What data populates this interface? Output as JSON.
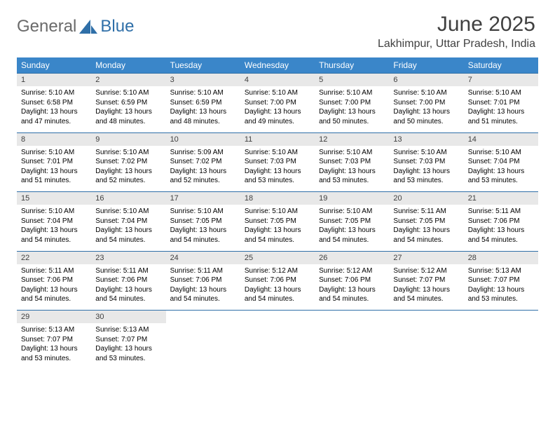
{
  "brand": {
    "g": "General",
    "b": "Blue"
  },
  "title": "June 2025",
  "location": "Lakhimpur, Uttar Pradesh, India",
  "colors": {
    "header_bg": "#3a86c9",
    "header_text": "#ffffff",
    "daynum_bg": "#e8e8e8",
    "border": "#2f6fa8",
    "title_color": "#404040"
  },
  "day_headers": [
    "Sunday",
    "Monday",
    "Tuesday",
    "Wednesday",
    "Thursday",
    "Friday",
    "Saturday"
  ],
  "weeks": [
    [
      {
        "n": "1",
        "sr": "Sunrise: 5:10 AM",
        "ss": "Sunset: 6:58 PM",
        "d1": "Daylight: 13 hours",
        "d2": "and 47 minutes."
      },
      {
        "n": "2",
        "sr": "Sunrise: 5:10 AM",
        "ss": "Sunset: 6:59 PM",
        "d1": "Daylight: 13 hours",
        "d2": "and 48 minutes."
      },
      {
        "n": "3",
        "sr": "Sunrise: 5:10 AM",
        "ss": "Sunset: 6:59 PM",
        "d1": "Daylight: 13 hours",
        "d2": "and 48 minutes."
      },
      {
        "n": "4",
        "sr": "Sunrise: 5:10 AM",
        "ss": "Sunset: 7:00 PM",
        "d1": "Daylight: 13 hours",
        "d2": "and 49 minutes."
      },
      {
        "n": "5",
        "sr": "Sunrise: 5:10 AM",
        "ss": "Sunset: 7:00 PM",
        "d1": "Daylight: 13 hours",
        "d2": "and 50 minutes."
      },
      {
        "n": "6",
        "sr": "Sunrise: 5:10 AM",
        "ss": "Sunset: 7:00 PM",
        "d1": "Daylight: 13 hours",
        "d2": "and 50 minutes."
      },
      {
        "n": "7",
        "sr": "Sunrise: 5:10 AM",
        "ss": "Sunset: 7:01 PM",
        "d1": "Daylight: 13 hours",
        "d2": "and 51 minutes."
      }
    ],
    [
      {
        "n": "8",
        "sr": "Sunrise: 5:10 AM",
        "ss": "Sunset: 7:01 PM",
        "d1": "Daylight: 13 hours",
        "d2": "and 51 minutes."
      },
      {
        "n": "9",
        "sr": "Sunrise: 5:10 AM",
        "ss": "Sunset: 7:02 PM",
        "d1": "Daylight: 13 hours",
        "d2": "and 52 minutes."
      },
      {
        "n": "10",
        "sr": "Sunrise: 5:09 AM",
        "ss": "Sunset: 7:02 PM",
        "d1": "Daylight: 13 hours",
        "d2": "and 52 minutes."
      },
      {
        "n": "11",
        "sr": "Sunrise: 5:10 AM",
        "ss": "Sunset: 7:03 PM",
        "d1": "Daylight: 13 hours",
        "d2": "and 53 minutes."
      },
      {
        "n": "12",
        "sr": "Sunrise: 5:10 AM",
        "ss": "Sunset: 7:03 PM",
        "d1": "Daylight: 13 hours",
        "d2": "and 53 minutes."
      },
      {
        "n": "13",
        "sr": "Sunrise: 5:10 AM",
        "ss": "Sunset: 7:03 PM",
        "d1": "Daylight: 13 hours",
        "d2": "and 53 minutes."
      },
      {
        "n": "14",
        "sr": "Sunrise: 5:10 AM",
        "ss": "Sunset: 7:04 PM",
        "d1": "Daylight: 13 hours",
        "d2": "and 53 minutes."
      }
    ],
    [
      {
        "n": "15",
        "sr": "Sunrise: 5:10 AM",
        "ss": "Sunset: 7:04 PM",
        "d1": "Daylight: 13 hours",
        "d2": "and 54 minutes."
      },
      {
        "n": "16",
        "sr": "Sunrise: 5:10 AM",
        "ss": "Sunset: 7:04 PM",
        "d1": "Daylight: 13 hours",
        "d2": "and 54 minutes."
      },
      {
        "n": "17",
        "sr": "Sunrise: 5:10 AM",
        "ss": "Sunset: 7:05 PM",
        "d1": "Daylight: 13 hours",
        "d2": "and 54 minutes."
      },
      {
        "n": "18",
        "sr": "Sunrise: 5:10 AM",
        "ss": "Sunset: 7:05 PM",
        "d1": "Daylight: 13 hours",
        "d2": "and 54 minutes."
      },
      {
        "n": "19",
        "sr": "Sunrise: 5:10 AM",
        "ss": "Sunset: 7:05 PM",
        "d1": "Daylight: 13 hours",
        "d2": "and 54 minutes."
      },
      {
        "n": "20",
        "sr": "Sunrise: 5:11 AM",
        "ss": "Sunset: 7:05 PM",
        "d1": "Daylight: 13 hours",
        "d2": "and 54 minutes."
      },
      {
        "n": "21",
        "sr": "Sunrise: 5:11 AM",
        "ss": "Sunset: 7:06 PM",
        "d1": "Daylight: 13 hours",
        "d2": "and 54 minutes."
      }
    ],
    [
      {
        "n": "22",
        "sr": "Sunrise: 5:11 AM",
        "ss": "Sunset: 7:06 PM",
        "d1": "Daylight: 13 hours",
        "d2": "and 54 minutes."
      },
      {
        "n": "23",
        "sr": "Sunrise: 5:11 AM",
        "ss": "Sunset: 7:06 PM",
        "d1": "Daylight: 13 hours",
        "d2": "and 54 minutes."
      },
      {
        "n": "24",
        "sr": "Sunrise: 5:11 AM",
        "ss": "Sunset: 7:06 PM",
        "d1": "Daylight: 13 hours",
        "d2": "and 54 minutes."
      },
      {
        "n": "25",
        "sr": "Sunrise: 5:12 AM",
        "ss": "Sunset: 7:06 PM",
        "d1": "Daylight: 13 hours",
        "d2": "and 54 minutes."
      },
      {
        "n": "26",
        "sr": "Sunrise: 5:12 AM",
        "ss": "Sunset: 7:06 PM",
        "d1": "Daylight: 13 hours",
        "d2": "and 54 minutes."
      },
      {
        "n": "27",
        "sr": "Sunrise: 5:12 AM",
        "ss": "Sunset: 7:07 PM",
        "d1": "Daylight: 13 hours",
        "d2": "and 54 minutes."
      },
      {
        "n": "28",
        "sr": "Sunrise: 5:13 AM",
        "ss": "Sunset: 7:07 PM",
        "d1": "Daylight: 13 hours",
        "d2": "and 53 minutes."
      }
    ],
    [
      {
        "n": "29",
        "sr": "Sunrise: 5:13 AM",
        "ss": "Sunset: 7:07 PM",
        "d1": "Daylight: 13 hours",
        "d2": "and 53 minutes."
      },
      {
        "n": "30",
        "sr": "Sunrise: 5:13 AM",
        "ss": "Sunset: 7:07 PM",
        "d1": "Daylight: 13 hours",
        "d2": "and 53 minutes."
      },
      {
        "n": "",
        "sr": "",
        "ss": "",
        "d1": "",
        "d2": ""
      },
      {
        "n": "",
        "sr": "",
        "ss": "",
        "d1": "",
        "d2": ""
      },
      {
        "n": "",
        "sr": "",
        "ss": "",
        "d1": "",
        "d2": ""
      },
      {
        "n": "",
        "sr": "",
        "ss": "",
        "d1": "",
        "d2": ""
      },
      {
        "n": "",
        "sr": "",
        "ss": "",
        "d1": "",
        "d2": ""
      }
    ]
  ]
}
